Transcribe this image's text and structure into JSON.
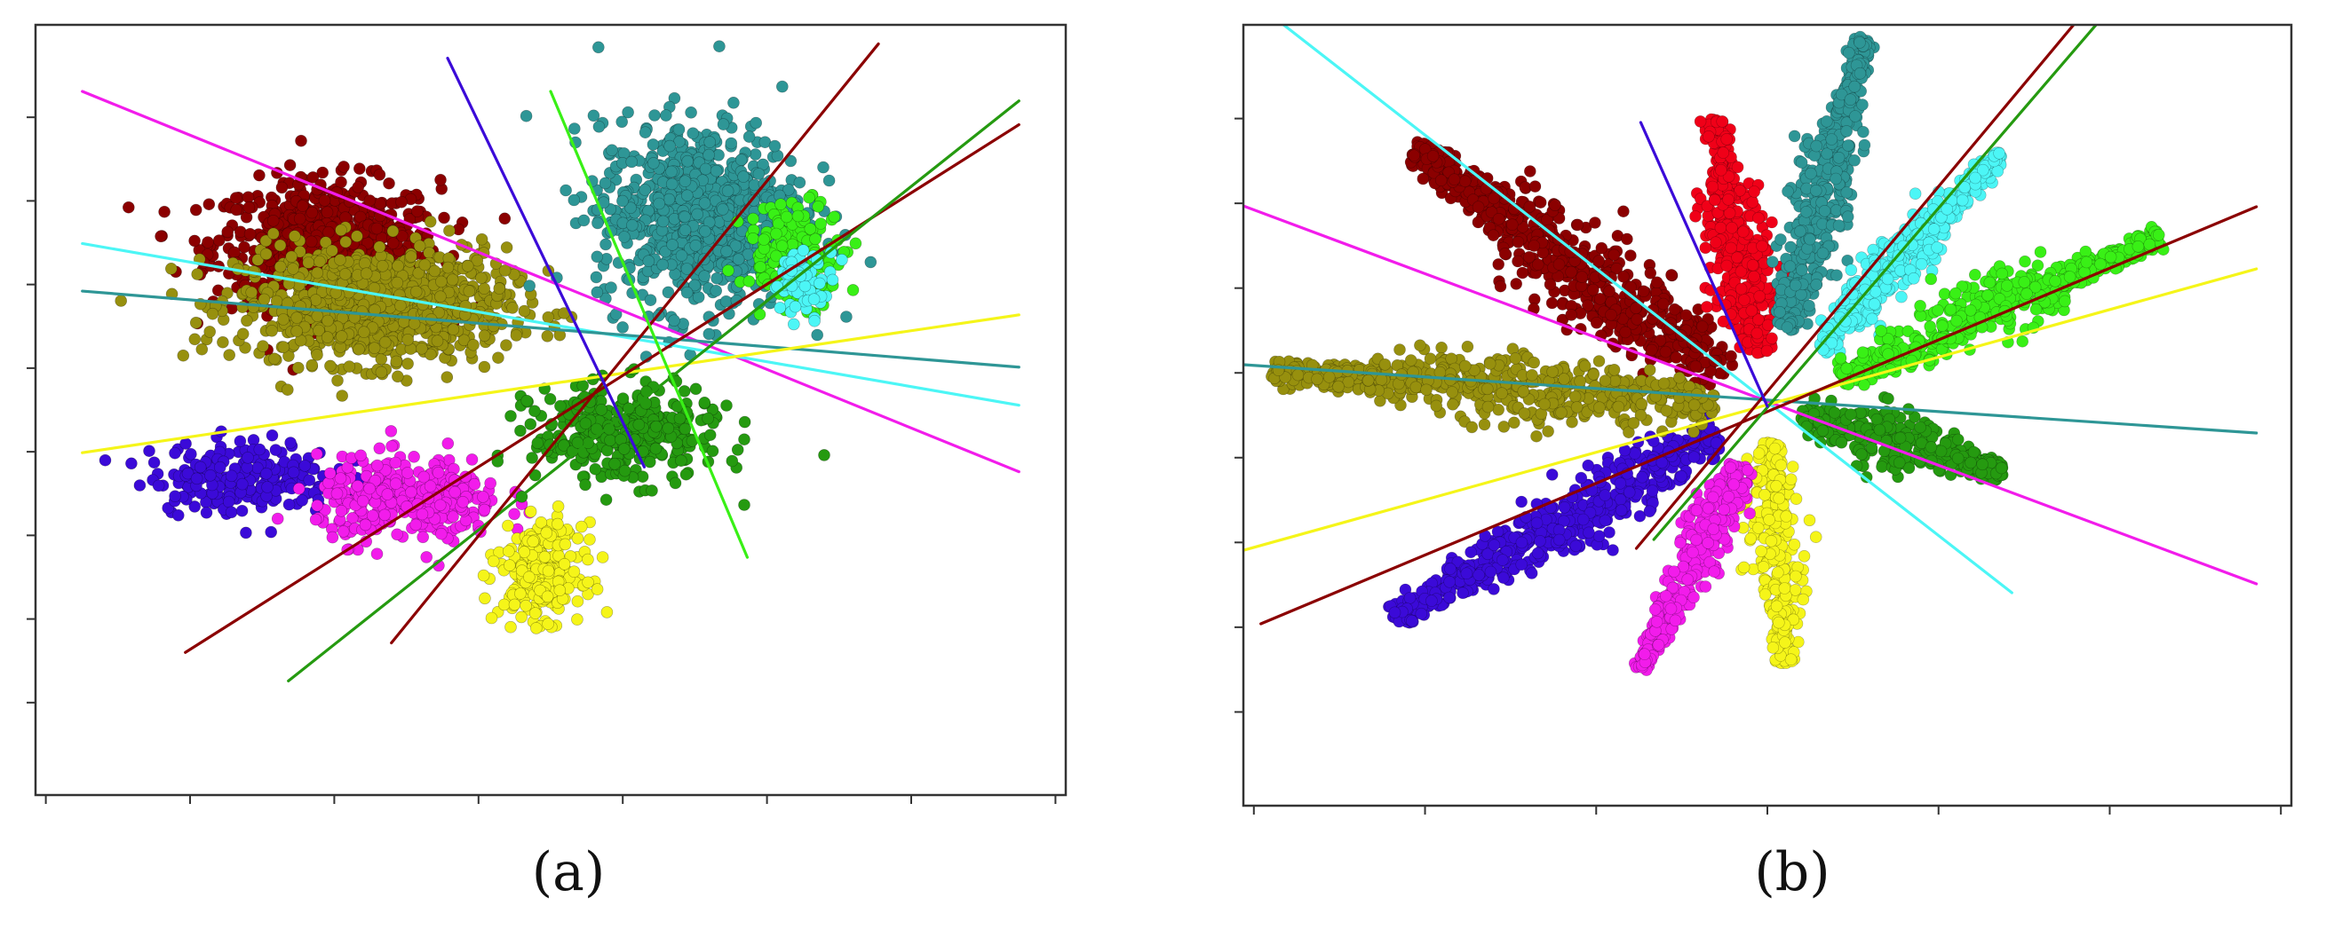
{
  "colors": {
    "dark_red": "#8B0000",
    "red": "#F00018",
    "teal": "#2E9696",
    "cyan": "#4CF6F6",
    "green": "#39F016",
    "dark_green": "#259A10",
    "yellow": "#F5F519",
    "magenta": "#F21CEB",
    "blue": "#3B0AD8",
    "olive": "#97900E"
  },
  "chart_data": [
    {
      "panel": "a",
      "caption": "(a)",
      "type": "scatter",
      "title": "",
      "xlabel": "",
      "ylabel": "",
      "tick_labels_shown": false,
      "x_ticks": 8,
      "y_ticks": 8,
      "xlim": [
        -5,
        6
      ],
      "ylim": [
        -4.6,
        3.5
      ],
      "grid": false,
      "clusters": [
        {
          "color": "dark_red",
          "center": [
            -1.9,
            1.2
          ],
          "spread": [
            1.1,
            0.6
          ],
          "n": 700
        },
        {
          "color": "olive",
          "center": [
            -1.4,
            0.55
          ],
          "spread": [
            1.3,
            0.55
          ],
          "n": 900
        },
        {
          "color": "teal",
          "center": [
            2.1,
            1.5
          ],
          "spread": [
            1.0,
            0.9
          ],
          "n": 800
        },
        {
          "color": "blue",
          "center": [
            -2.8,
            -1.25
          ],
          "spread": [
            0.9,
            0.35
          ],
          "n": 220
        },
        {
          "color": "magenta",
          "center": [
            -1.0,
            -1.5
          ],
          "spread": [
            0.9,
            0.4
          ],
          "n": 350
        },
        {
          "color": "yellow",
          "center": [
            0.4,
            -2.25
          ],
          "spread": [
            0.4,
            0.45
          ],
          "n": 260
        },
        {
          "color": "dark_green",
          "center": [
            1.3,
            -0.8
          ],
          "spread": [
            0.9,
            0.45
          ],
          "n": 350
        },
        {
          "color": "green",
          "center": [
            3.1,
            1.1
          ],
          "spread": [
            0.5,
            0.5
          ],
          "n": 160
        },
        {
          "color": "cyan",
          "center": [
            3.2,
            0.8
          ],
          "spread": [
            0.3,
            0.3
          ],
          "n": 60
        }
      ],
      "lines": [
        {
          "color": "magenta",
          "from": [
            -4.5,
            2.8
          ],
          "to": [
            5.5,
            -1.2
          ]
        },
        {
          "color": "cyan",
          "from": [
            -4.5,
            1.2
          ],
          "to": [
            5.5,
            -0.5
          ]
        },
        {
          "color": "teal",
          "from": [
            -4.5,
            0.7
          ],
          "to": [
            5.5,
            -0.1
          ]
        },
        {
          "color": "yellow",
          "from": [
            -4.5,
            -1.0
          ],
          "to": [
            5.5,
            0.45
          ]
        },
        {
          "color": "dark_red",
          "from": [
            -3.4,
            -3.1
          ],
          "to": [
            5.5,
            2.45
          ]
        },
        {
          "color": "dark_green",
          "from": [
            -2.3,
            -3.4
          ],
          "to": [
            5.5,
            2.7
          ]
        },
        {
          "color": "dark_red",
          "from": [
            -1.2,
            -3.0
          ],
          "to": [
            4.0,
            3.3
          ]
        },
        {
          "color": "blue",
          "from": [
            -0.6,
            3.15
          ],
          "to": [
            1.5,
            -1.15
          ]
        },
        {
          "color": "green",
          "from": [
            0.5,
            2.8
          ],
          "to": [
            2.6,
            -2.1
          ]
        }
      ]
    },
    {
      "panel": "b",
      "caption": "(b)",
      "type": "scatter",
      "title": "",
      "xlabel": "",
      "ylabel": "",
      "tick_labels_shown": false,
      "x_ticks": 7,
      "y_ticks": 8,
      "xlim": [
        -6,
        6
      ],
      "ylim": [
        -4.5,
        4.3
      ],
      "grid": false,
      "origin": [
        0,
        0
      ],
      "arms": [
        {
          "color": "dark_red",
          "angle_deg": 144,
          "r_start": 0.6,
          "r_end": 5.0,
          "width": 0.55,
          "n": 650
        },
        {
          "color": "red",
          "angle_deg": 101,
          "r_start": 0.6,
          "r_end": 3.3,
          "width": 0.38,
          "n": 450
        },
        {
          "color": "teal",
          "angle_deg": 75,
          "r_start": 0.9,
          "r_end": 4.3,
          "width": 0.35,
          "n": 500
        },
        {
          "color": "cyan",
          "angle_deg": 47,
          "r_start": 0.9,
          "r_end": 3.9,
          "width": 0.3,
          "n": 420
        },
        {
          "color": "green",
          "angle_deg": 23,
          "r_start": 0.9,
          "r_end": 4.9,
          "width": 0.36,
          "n": 520
        },
        {
          "color": "dark_green",
          "angle_deg": -15,
          "r_start": 0.4,
          "r_end": 2.8,
          "width": 0.35,
          "n": 330
        },
        {
          "color": "yellow",
          "angle_deg": -86,
          "r_start": 0.4,
          "r_end": 2.9,
          "width": 0.35,
          "n": 300
        },
        {
          "color": "magenta",
          "angle_deg": -116,
          "r_start": 0.7,
          "r_end": 3.3,
          "width": 0.3,
          "n": 330
        },
        {
          "color": "blue",
          "angle_deg": -151,
          "r_start": 0.6,
          "r_end": 4.9,
          "width": 0.4,
          "n": 560
        },
        {
          "color": "olive",
          "angle_deg": 176,
          "r_start": 0.6,
          "r_end": 5.7,
          "width": 0.42,
          "n": 600
        }
      ],
      "lines": [
        {
          "color": "cyan",
          "from": [
            -5.8,
            4.5
          ],
          "to": [
            2.8,
            -2.1
          ]
        },
        {
          "color": "magenta",
          "from": [
            -7.2,
            2.7
          ],
          "to": [
            5.6,
            -2.0
          ]
        },
        {
          "color": "teal",
          "from": [
            -7.2,
            0.55
          ],
          "to": [
            5.6,
            -0.3
          ]
        },
        {
          "color": "yellow",
          "from": [
            -7.2,
            -1.95
          ],
          "to": [
            5.6,
            1.55
          ]
        },
        {
          "color": "dark_red",
          "from": [
            -5.8,
            -2.45
          ],
          "to": [
            5.6,
            2.25
          ]
        },
        {
          "color": "dark_red",
          "from": [
            -1.5,
            -1.6
          ],
          "to": [
            4.1,
            5.0
          ]
        },
        {
          "color": "dark_green",
          "from": [
            -1.3,
            -1.5
          ],
          "to": [
            4.2,
            4.8
          ]
        },
        {
          "color": "blue",
          "from": [
            -1.45,
            3.2
          ],
          "to": [
            0.0,
            0.0
          ]
        }
      ]
    }
  ]
}
